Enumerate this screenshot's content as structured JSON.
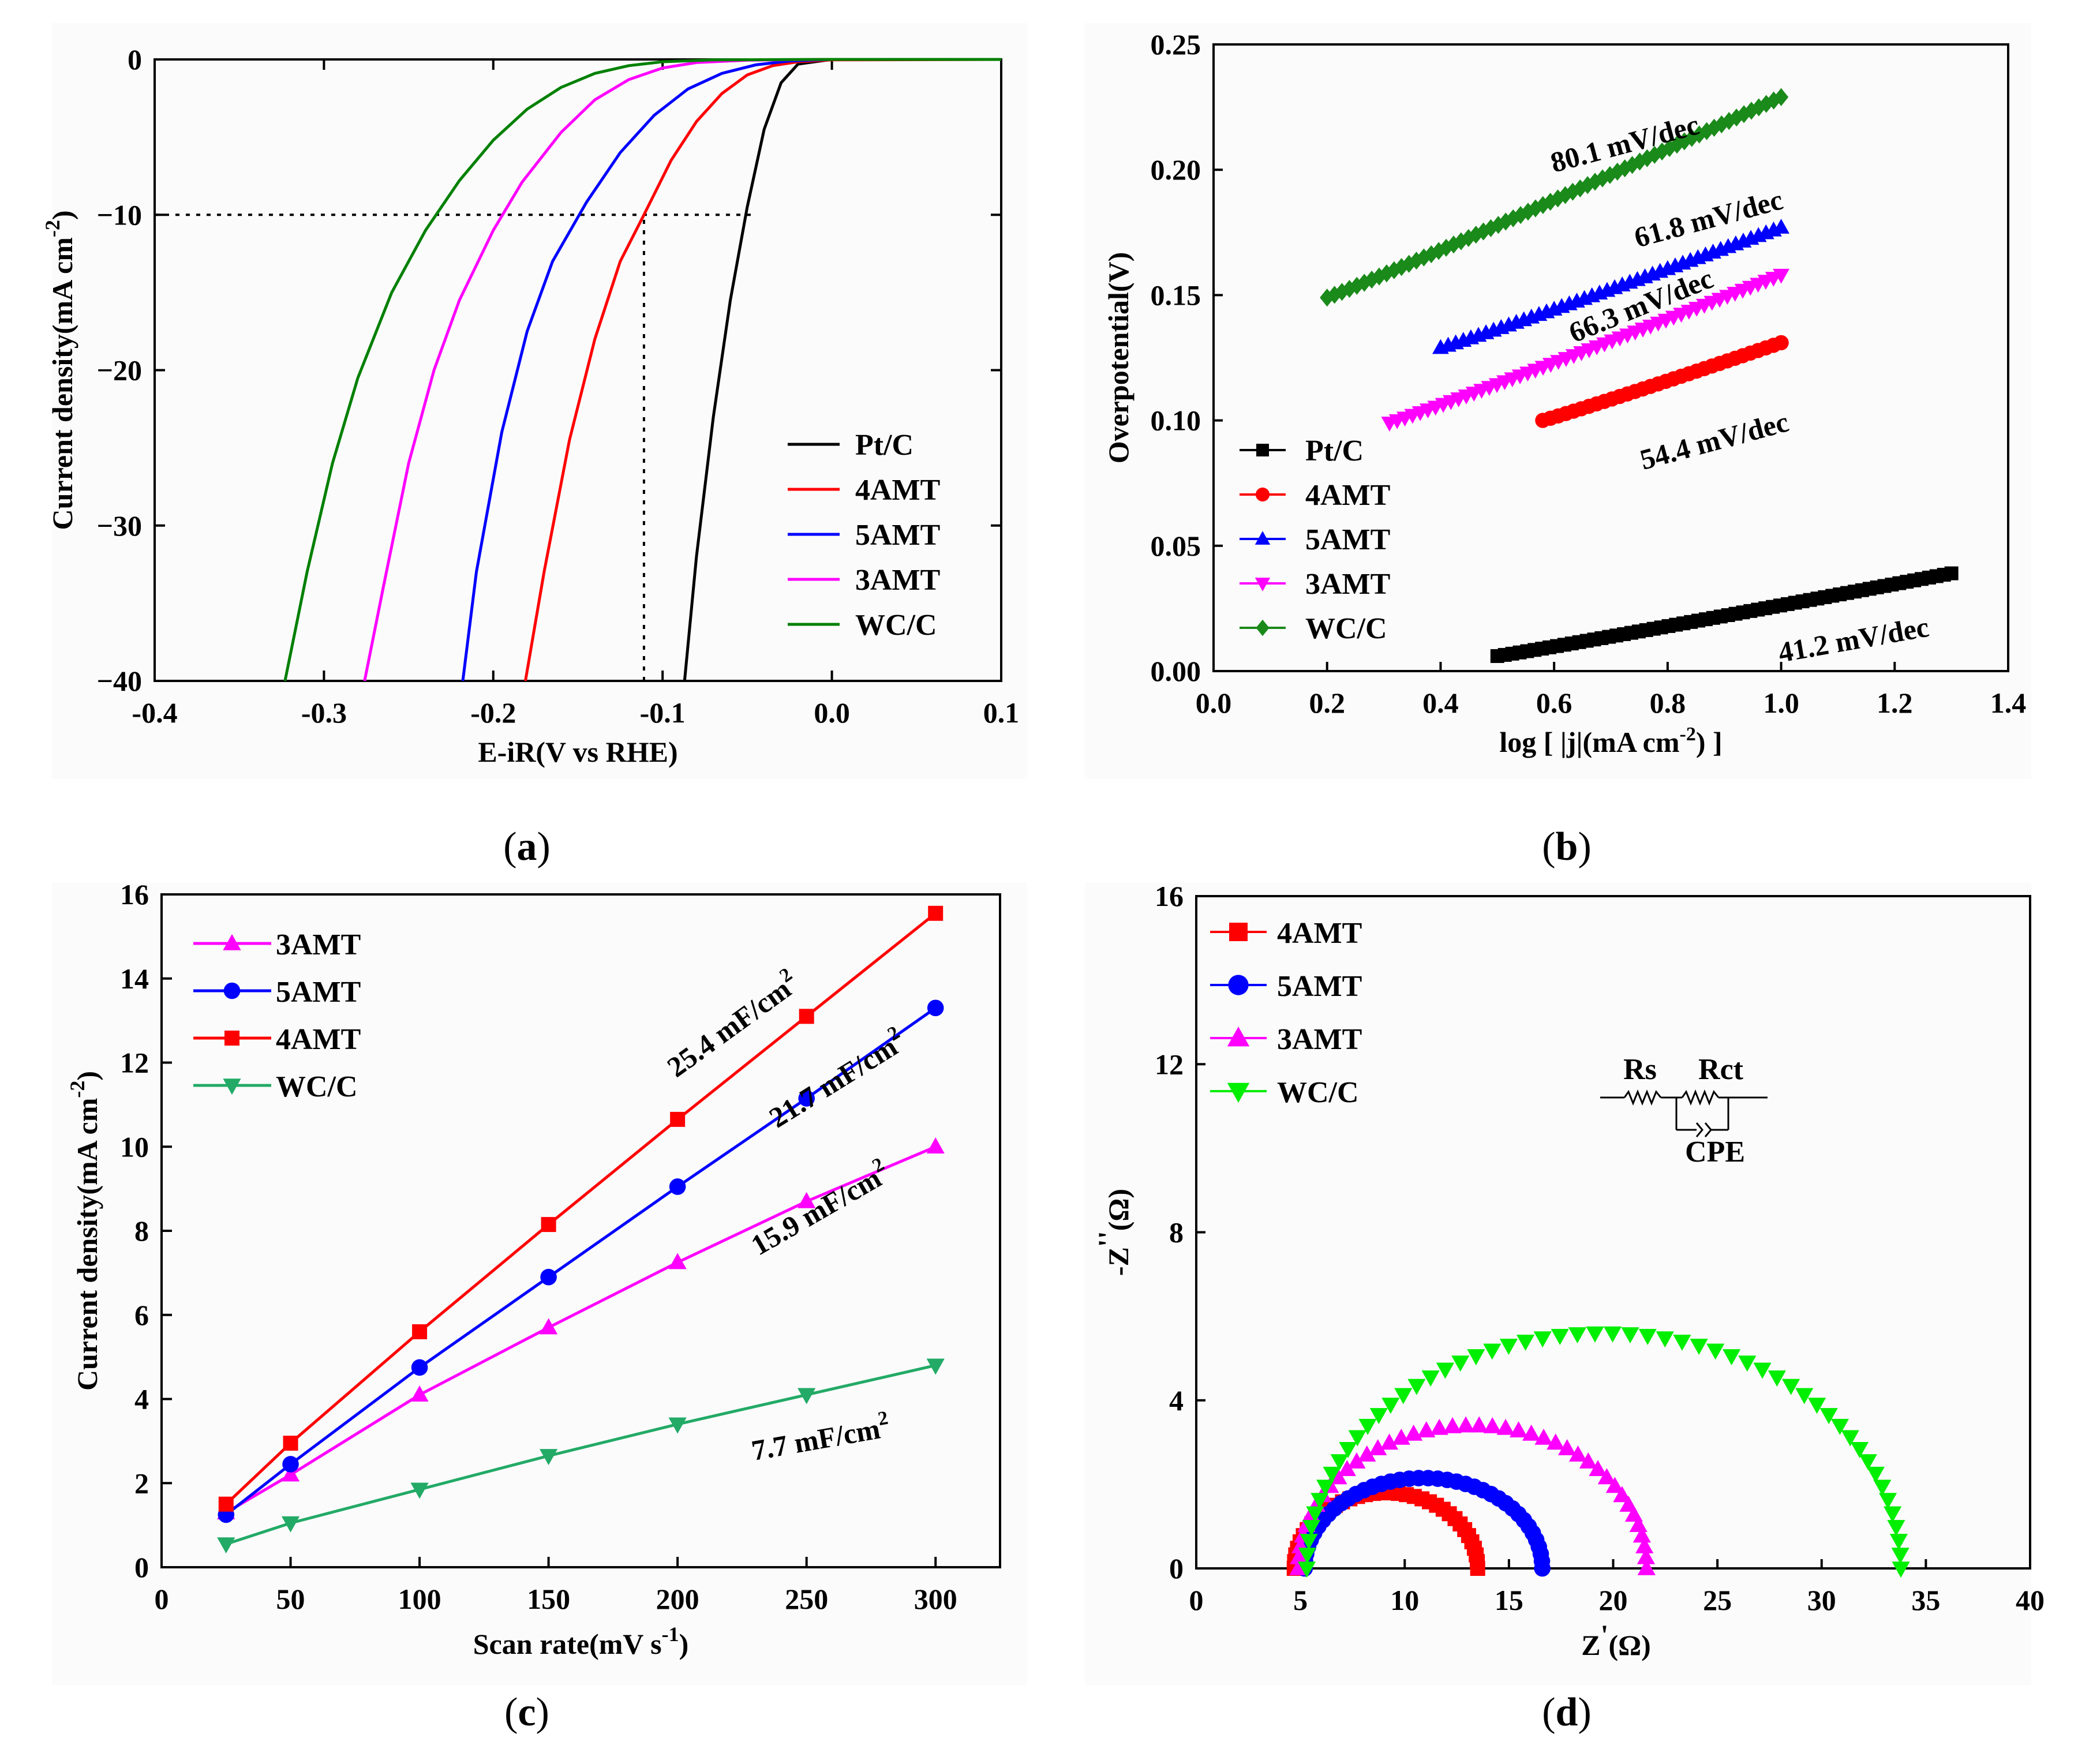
{
  "chart_data": [
    {
      "id": "a",
      "type": "line",
      "caption": "a",
      "xlabel": "E-iR(V vs RHE)",
      "ylabel": "Current density(mA cm",
      "ylabel_sup": "-2",
      "ylabel_end": ")",
      "xlim": [
        -0.4,
        0.1
      ],
      "ylim": [
        -40,
        0
      ],
      "xticks": [
        -0.4,
        -0.3,
        -0.2,
        -0.1,
        0.0,
        0.1
      ],
      "xtick_labels": [
        "-0.4",
        "-0.3",
        "-0.2",
        "-0.1",
        "0.0",
        "0.1"
      ],
      "yticks": [
        0,
        -10,
        -20,
        -30,
        -40
      ],
      "ytick_labels": [
        "0",
        "−10",
        "−20",
        "−30",
        "−40"
      ],
      "reference_lines": [
        {
          "kind": "h",
          "y": -10,
          "x_from": -0.4,
          "x_to": -0.045
        },
        {
          "kind": "v",
          "x": -0.111,
          "y_from": -40,
          "y_to": -10
        }
      ],
      "series": [
        {
          "name": "Pt/C",
          "color": "#000000",
          "onset": -0.02,
          "points": [
            [
              -0.087,
              -40
            ],
            [
              -0.08,
              -32
            ],
            [
              -0.07,
              -23
            ],
            [
              -0.06,
              -15.5
            ],
            [
              -0.05,
              -9.5
            ],
            [
              -0.04,
              -4.5
            ],
            [
              -0.03,
              -1.5
            ],
            [
              -0.02,
              -0.3
            ],
            [
              0.0,
              0
            ],
            [
              0.1,
              0
            ]
          ]
        },
        {
          "name": "4AMT",
          "color": "#ff0000",
          "onset": -0.05,
          "points": [
            [
              -0.181,
              -40
            ],
            [
              -0.17,
              -33
            ],
            [
              -0.155,
              -24.5
            ],
            [
              -0.14,
              -18
            ],
            [
              -0.125,
              -13
            ],
            [
              -0.111,
              -10
            ],
            [
              -0.095,
              -6.5
            ],
            [
              -0.08,
              -4
            ],
            [
              -0.065,
              -2.2
            ],
            [
              -0.05,
              -1
            ],
            [
              -0.035,
              -0.4
            ],
            [
              -0.02,
              -0.15
            ],
            [
              0.0,
              -0.03
            ],
            [
              0.1,
              0
            ]
          ]
        },
        {
          "name": "5AMT",
          "color": "#0000ff",
          "onset": -0.06,
          "points": [
            [
              -0.218,
              -40
            ],
            [
              -0.21,
              -33
            ],
            [
              -0.195,
              -24
            ],
            [
              -0.18,
              -17.5
            ],
            [
              -0.165,
              -13
            ],
            [
              -0.145,
              -9.2
            ],
            [
              -0.125,
              -6
            ],
            [
              -0.105,
              -3.6
            ],
            [
              -0.085,
              -1.9
            ],
            [
              -0.065,
              -0.9
            ],
            [
              -0.045,
              -0.35
            ],
            [
              -0.025,
              -0.1
            ],
            [
              0.0,
              0
            ],
            [
              0.1,
              0
            ]
          ]
        },
        {
          "name": "3AMT",
          "color": "#ff00ff",
          "onset": -0.1,
          "points": [
            [
              -0.276,
              -40
            ],
            [
              -0.265,
              -34
            ],
            [
              -0.25,
              -26
            ],
            [
              -0.235,
              -20
            ],
            [
              -0.22,
              -15.5
            ],
            [
              -0.2,
              -11
            ],
            [
              -0.183,
              -7.9
            ],
            [
              -0.16,
              -4.7
            ],
            [
              -0.14,
              -2.6
            ],
            [
              -0.12,
              -1.3
            ],
            [
              -0.1,
              -0.55
            ],
            [
              -0.08,
              -0.2
            ],
            [
              -0.05,
              -0.05
            ],
            [
              0.0,
              0
            ],
            [
              0.1,
              0
            ]
          ]
        },
        {
          "name": "WC/C",
          "color": "#008000",
          "onset": -0.12,
          "points": [
            [
              -0.323,
              -40
            ],
            [
              -0.31,
              -33
            ],
            [
              -0.295,
              -26
            ],
            [
              -0.28,
              -20.5
            ],
            [
              -0.26,
              -15
            ],
            [
              -0.24,
              -11
            ],
            [
              -0.22,
              -7.8
            ],
            [
              -0.2,
              -5.2
            ],
            [
              -0.18,
              -3.2
            ],
            [
              -0.16,
              -1.8
            ],
            [
              -0.14,
              -0.9
            ],
            [
              -0.12,
              -0.4
            ],
            [
              -0.1,
              -0.15
            ],
            [
              -0.07,
              -0.03
            ],
            [
              0.0,
              0
            ],
            [
              0.1,
              0
            ]
          ]
        }
      ]
    },
    {
      "id": "b",
      "type": "scatter",
      "caption": "b",
      "xlabel_pre": "log [ ",
      "xlabel_j": "|j|",
      "xlabel_mid": "(mA cm",
      "xlabel_sup": "-2",
      "xlabel_end": ") ]",
      "ylabel": "Overpotential(V)",
      "xlim": [
        0.0,
        1.4
      ],
      "ylim": [
        0.0,
        0.25
      ],
      "xticks": [
        0.0,
        0.2,
        0.4,
        0.6,
        0.8,
        1.0,
        1.2,
        1.4
      ],
      "xtick_labels": [
        "0.0",
        "0.2",
        "0.4",
        "0.6",
        "0.8",
        "1.0",
        "1.2",
        "1.4"
      ],
      "yticks": [
        0.0,
        0.05,
        0.1,
        0.15,
        0.2,
        0.25
      ],
      "ytick_labels": [
        "0.00",
        "0.05",
        "0.10",
        "0.15",
        "0.20",
        "0.25"
      ],
      "series": [
        {
          "name": "Pt/C",
          "color": "#000000",
          "marker": "square",
          "x_range": [
            0.5,
            1.3
          ],
          "y_range": [
            0.006,
            0.039
          ],
          "n": 62,
          "annotation": "41.2 mV/dec"
        },
        {
          "name": "4AMT",
          "color": "#ff0000",
          "marker": "circle",
          "x_range": [
            0.58,
            1.0
          ],
          "y_range": [
            0.1,
            0.131
          ],
          "n": 32,
          "annotation": "54.4 mV/dec"
        },
        {
          "name": "5AMT",
          "color": "#0000ff",
          "marker": "triangle-up",
          "x_range": [
            0.4,
            1.0
          ],
          "y_range": [
            0.129,
            0.177
          ],
          "n": 46,
          "annotation": "61.8 mV/dec"
        },
        {
          "name": "3AMT",
          "color": "#ff00ff",
          "marker": "triangle-down",
          "x_range": [
            0.31,
            1.0
          ],
          "y_range": [
            0.099,
            0.158
          ],
          "n": 52,
          "annotation": "66.3 mV/dec"
        },
        {
          "name": "WC/C",
          "color": "#1a8a1a",
          "marker": "diamond",
          "x_range": [
            0.2,
            1.0
          ],
          "y_range": [
            0.149,
            0.229
          ],
          "n": 62,
          "annotation": "80.1 mV/dec"
        }
      ]
    },
    {
      "id": "c",
      "type": "line",
      "caption": "c",
      "xlabel": "Scan rate(mV s",
      "xlabel_sup": "-1",
      "xlabel_end": ")",
      "ylabel": "Current density(mA cm",
      "ylabel_sup": "-2",
      "ylabel_end": ")",
      "xlim": [
        0,
        325
      ],
      "ylim": [
        0,
        16
      ],
      "xticks": [
        0,
        50,
        100,
        150,
        200,
        250,
        300
      ],
      "xtick_labels": [
        "0",
        "50",
        "100",
        "150",
        "200",
        "250",
        "300"
      ],
      "yticks": [
        0,
        2,
        4,
        6,
        8,
        10,
        12,
        14,
        16
      ],
      "ytick_labels": [
        "0",
        "2",
        "4",
        "6",
        "8",
        "10",
        "12",
        "14",
        "16"
      ],
      "x": [
        25,
        50,
        100,
        150,
        200,
        250,
        300
      ],
      "series": [
        {
          "name": "3AMT",
          "color": "#ff00ff",
          "marker": "triangle-up",
          "values": [
            1.3,
            2.2,
            4.1,
            5.7,
            7.25,
            8.7,
            10.0
          ],
          "annotation": "15.9 mF/cm",
          "annotation_sup": "2"
        },
        {
          "name": "5AMT",
          "color": "#0000ff",
          "marker": "circle",
          "values": [
            1.25,
            2.45,
            4.75,
            6.9,
            9.05,
            11.15,
            13.3
          ],
          "annotation": "21.7 mF/cm",
          "annotation_sup": "2"
        },
        {
          "name": "4AMT",
          "color": "#ff0000",
          "marker": "square",
          "values": [
            1.5,
            2.95,
            5.6,
            8.15,
            10.65,
            13.1,
            15.55
          ],
          "annotation": "25.4 mF/cm",
          "annotation_sup": "2"
        },
        {
          "name": "WC/C",
          "color": "#22aa66",
          "marker": "triangle-down",
          "values": [
            0.55,
            1.05,
            1.85,
            2.65,
            3.4,
            4.1,
            4.8
          ],
          "annotation": "7.7 mF/cm",
          "annotation_sup": "2"
        }
      ]
    },
    {
      "id": "d",
      "type": "scatter",
      "caption": "d",
      "xlabel": "Z",
      "xlabel_prime": "'",
      "xlabel_end": "(Ω)",
      "ylabel": "-Z",
      "ylabel_prime": "''",
      "ylabel_end": "(Ω)",
      "xlim": [
        0,
        40
      ],
      "ylim": [
        0,
        16
      ],
      "xticks": [
        0,
        5,
        10,
        15,
        20,
        25,
        30,
        35,
        40
      ],
      "xtick_labels": [
        "0",
        "5",
        "10",
        "15",
        "20",
        "25",
        "30",
        "35",
        "40"
      ],
      "yticks": [
        0,
        4,
        8,
        12,
        16
      ],
      "ytick_labels": [
        "0",
        "4",
        "8",
        "12",
        "16"
      ],
      "circuit": {
        "rs": "Rs",
        "rct": "Rct",
        "cpe": "CPE"
      },
      "series": [
        {
          "name": "4AMT",
          "color": "#ff0000",
          "marker": "square",
          "rs": 4.7,
          "rct": 8.8,
          "peak": 1.8,
          "n": 36
        },
        {
          "name": "5AMT",
          "color": "#0000ff",
          "marker": "circle",
          "rs": 5.2,
          "rct": 11.4,
          "peak": 2.15,
          "n": 40
        },
        {
          "name": "3AMT",
          "color": "#ff00ff",
          "marker": "triangle-up",
          "rs": 4.9,
          "rct": 16.7,
          "peak": 3.4,
          "n": 42
        },
        {
          "name": "WC/C",
          "color": "#00ee00",
          "marker": "triangle-down",
          "rs": 5.3,
          "rct": 28.5,
          "peak": 5.6,
          "n": 54
        }
      ]
    }
  ]
}
